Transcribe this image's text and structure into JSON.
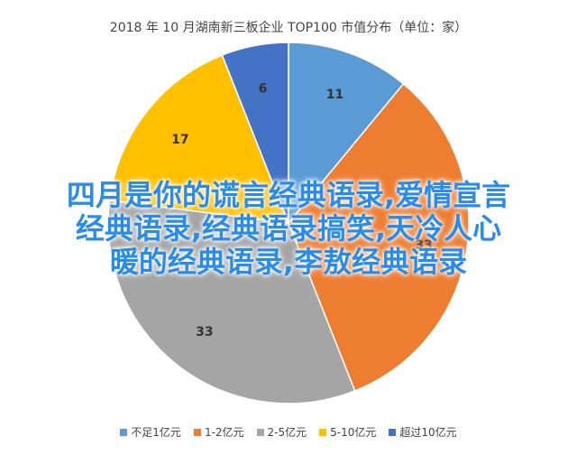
{
  "chart_data": {
    "type": "pie",
    "title": "2018 年 10 月湖南新三板企业 TOP100 市值分布（单位：家）",
    "categories": [
      "不足1亿元",
      "1-2亿元",
      "2-5亿元",
      "5-10亿元",
      "超过10亿元"
    ],
    "values": [
      11,
      33,
      33,
      17,
      6
    ],
    "colors": [
      "#5b9bd5",
      "#ed7d31",
      "#a5a5a5",
      "#ffc000",
      "#4472c4"
    ],
    "legend": "bottom"
  },
  "overlay": {
    "lines": [
      "四月是你的谎言经典语录,爱情宣言",
      "经典语录,经典语录搞笑,天冷人心",
      "暖的经典语录,李敖经典语录"
    ]
  }
}
